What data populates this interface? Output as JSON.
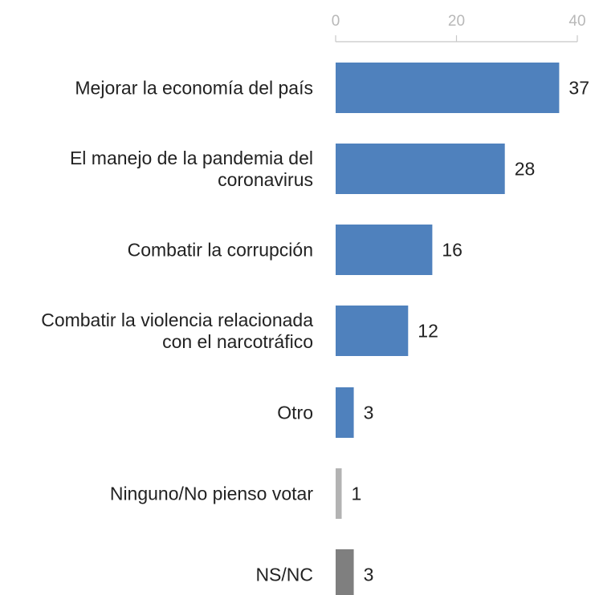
{
  "chart_data": {
    "type": "bar",
    "orientation": "horizontal",
    "categories": [
      [
        "Mejorar la economía del país"
      ],
      [
        "El manejo de la pandemia del",
        "coronavirus"
      ],
      [
        "Combatir la corrupción"
      ],
      [
        "Combatir la violencia relacionada",
        "con el narcotráfico"
      ],
      [
        "Otro"
      ],
      [
        "Ninguno/No pienso votar"
      ],
      [
        "NS/NC"
      ]
    ],
    "values": [
      37,
      28,
      16,
      12,
      3,
      1,
      3
    ],
    "value_labels": [
      "37",
      "28",
      "16",
      "12",
      "3",
      "1",
      "3"
    ],
    "colors": [
      "#4f81bd",
      "#4f81bd",
      "#4f81bd",
      "#4f81bd",
      "#4f81bd",
      "#b3b3b3",
      "#7f7f7f"
    ],
    "xticks": [
      "0",
      "20",
      "40"
    ],
    "xtick_values": [
      0,
      20,
      40
    ],
    "xlim": [
      0,
      40
    ],
    "axis_position": "top",
    "grid": false,
    "legend": "none"
  }
}
